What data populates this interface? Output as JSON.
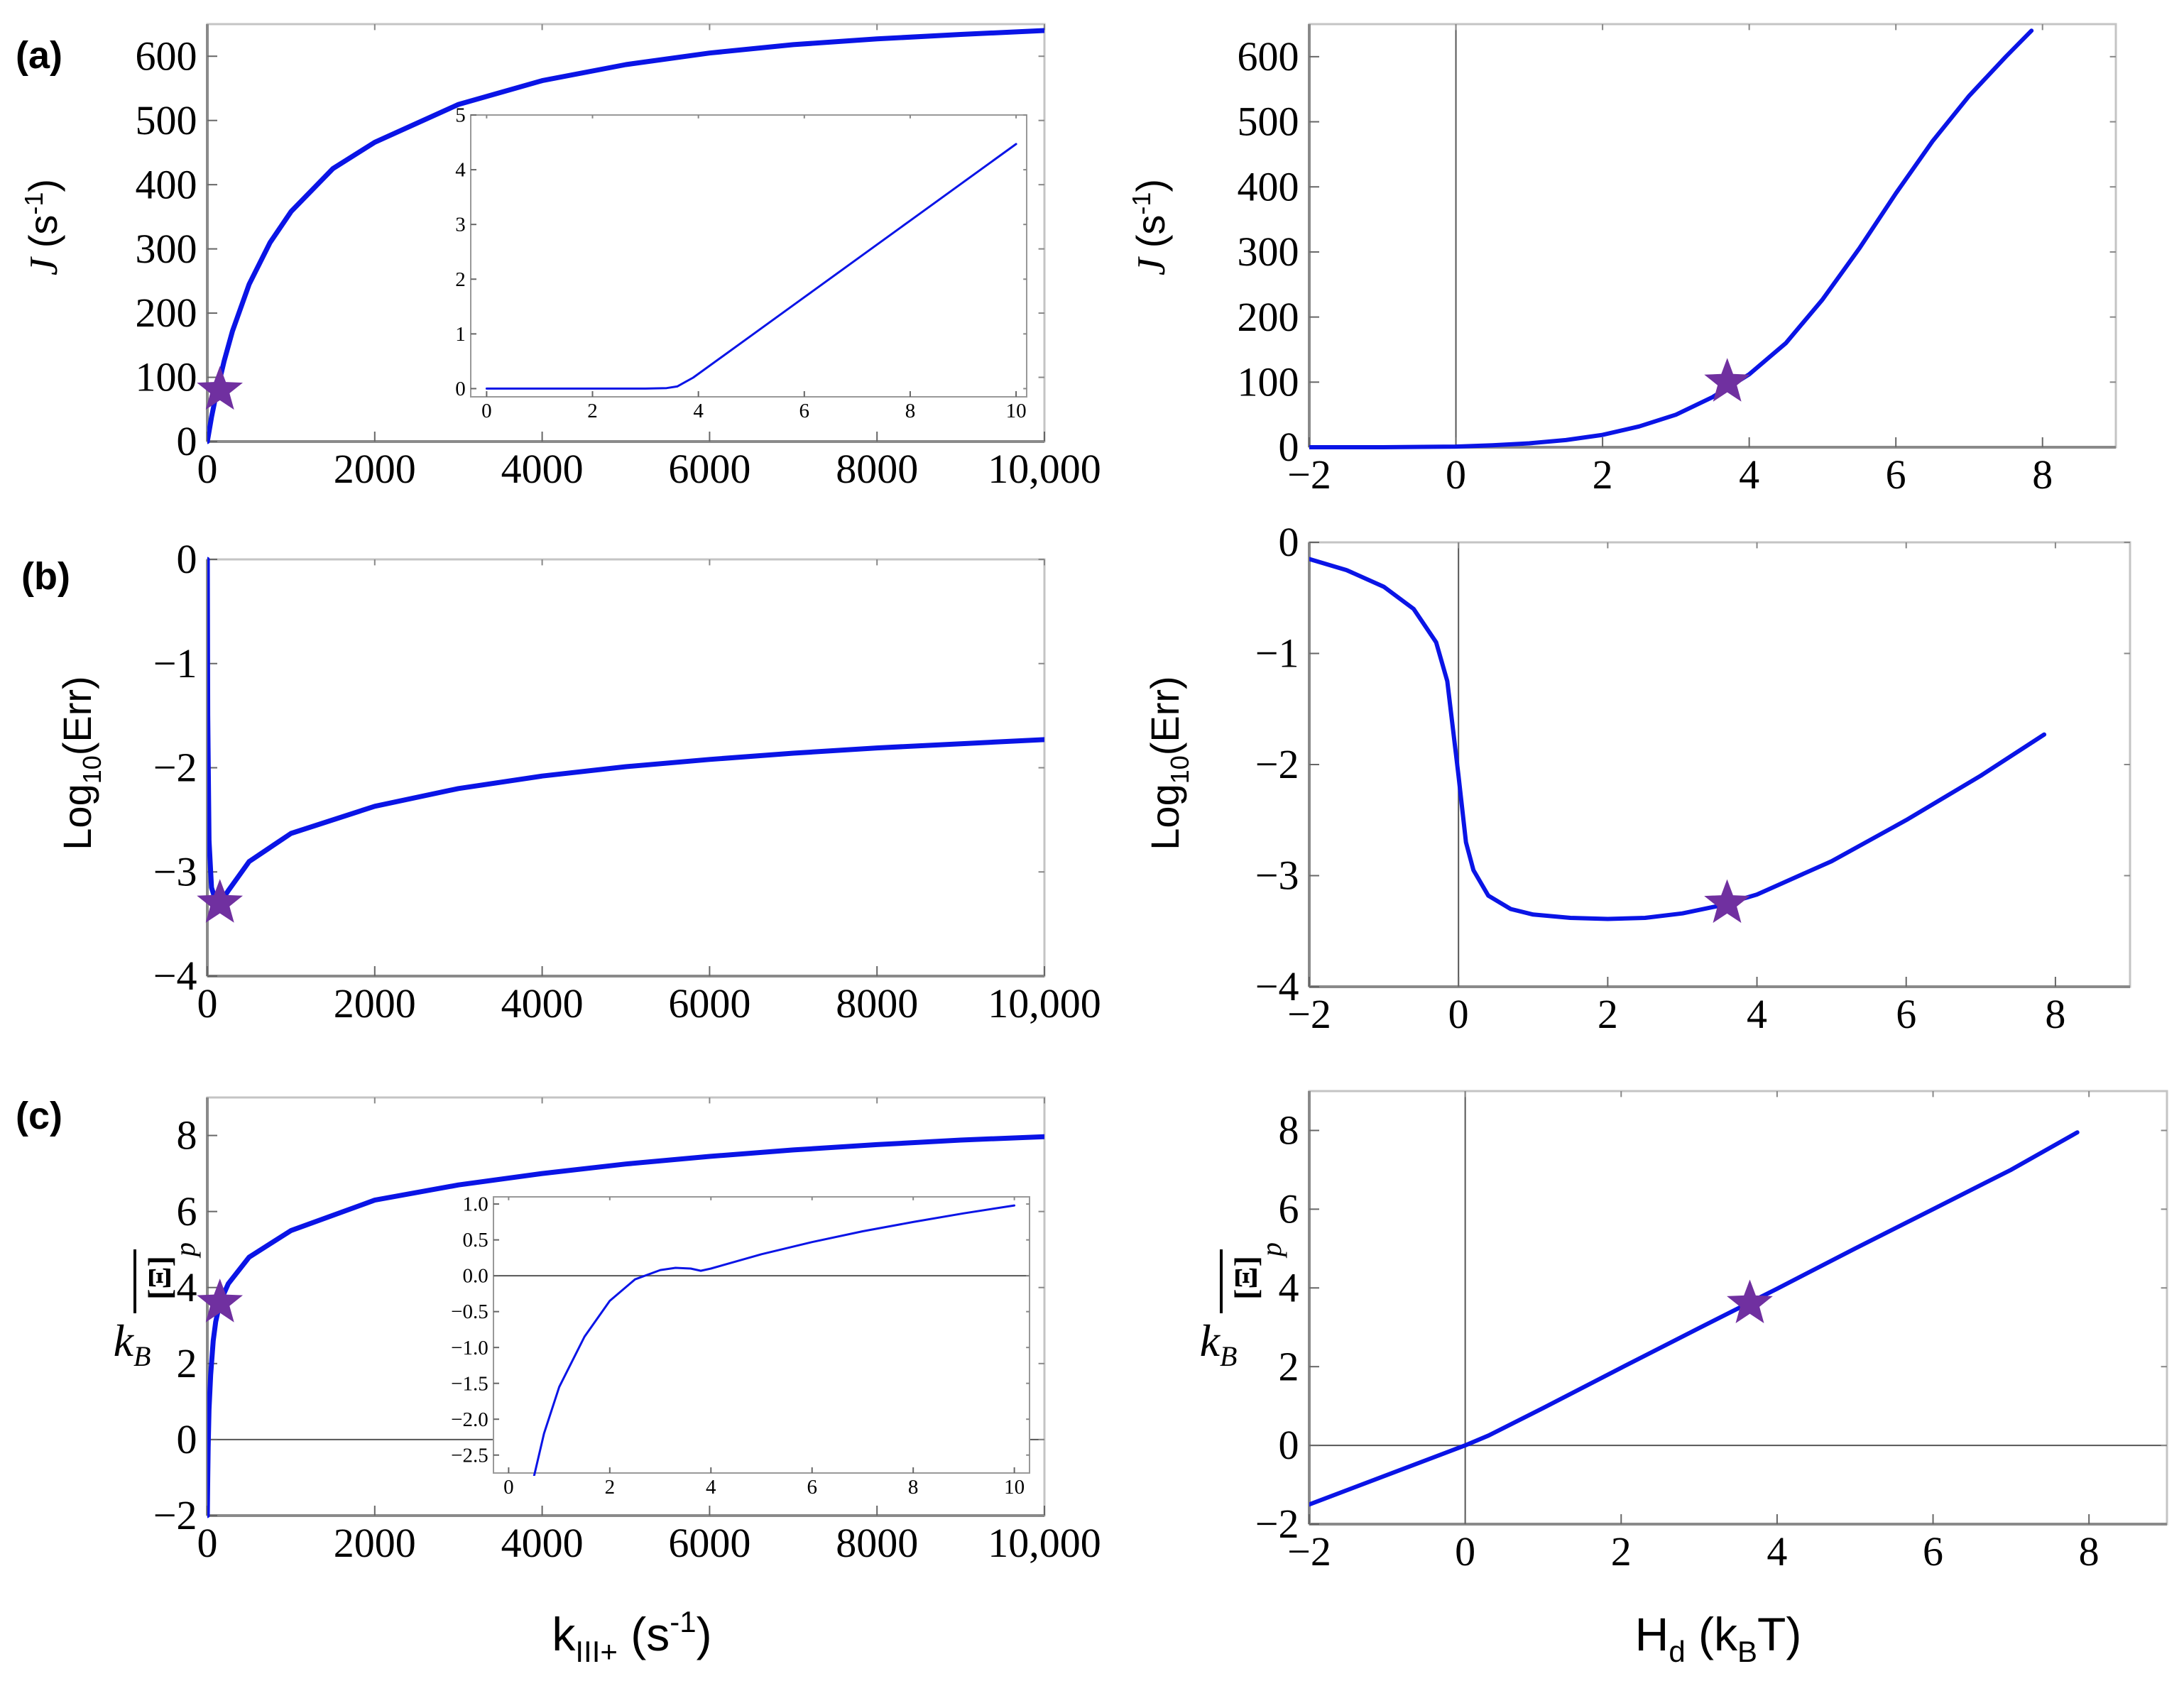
{
  "colors": {
    "curve": "#0a14e6",
    "star": "#7030a0",
    "frame": "#8a8a8a",
    "axis": "#555555",
    "text": "#000000"
  },
  "labels": {
    "panel_a": "(a)",
    "panel_b": "(b)",
    "panel_c": "(c)",
    "ylabel_J_main": "J",
    "ylabel_J_unit": "(s",
    "ylabel_J_exp": "-1",
    "ylabel_J_close": ")",
    "ylabel_err_main": "Log",
    "ylabel_err_sub": "10",
    "ylabel_err_rest": "(Err)",
    "ylabel_xi_num": "[Ξ]",
    "ylabel_xi_sub": "p",
    "ylabel_xi_den": "k",
    "ylabel_xi_densub": "B",
    "xlabel_left_main": "k",
    "xlabel_left_sub": "III+",
    "xlabel_left_unit": " (s",
    "xlabel_left_exp": "-1",
    "xlabel_left_close": ")",
    "xlabel_right_main": "H",
    "xlabel_right_sub": "d",
    "xlabel_right_unit": " (k",
    "xlabel_right_usub": "B",
    "xlabel_right_close": "T)"
  },
  "chart_data": [
    {
      "id": "a-left",
      "panel": "(a)",
      "type": "line",
      "xlabel": "k_III+ (s^-1)",
      "ylabel": "J (s^-1)",
      "xlim": [
        0,
        10000
      ],
      "ylim": [
        0,
        650
      ],
      "xticks": [
        "0",
        "2000",
        "4000",
        "6000",
        "8000",
        "10,000"
      ],
      "yticks": [
        "0",
        "100",
        "200",
        "300",
        "400",
        "500",
        "600"
      ],
      "x": [
        0,
        50,
        100,
        200,
        300,
        500,
        750,
        1000,
        1500,
        2000,
        3000,
        4000,
        5000,
        6000,
        7000,
        8000,
        9000,
        10000
      ],
      "y": [
        0,
        38,
        70,
        125,
        172,
        245,
        310,
        358,
        425,
        466,
        525,
        562,
        587,
        605,
        618,
        627,
        634,
        640
      ],
      "marker": {
        "symbol": "star",
        "x": 150,
        "y": 80
      }
    },
    {
      "id": "a-inset",
      "panel": "(a) inset",
      "type": "line",
      "xlim": [
        -0.3,
        10.2
      ],
      "ylim": [
        -0.15,
        5
      ],
      "xticks": [
        "0",
        "2",
        "4",
        "6",
        "8",
        "10"
      ],
      "yticks": [
        "0",
        "1",
        "2",
        "3",
        "4",
        "5"
      ],
      "x": [
        0,
        1,
        2,
        3,
        3.4,
        3.6,
        3.75,
        3.9,
        5,
        6,
        7,
        8,
        9,
        10
      ],
      "y": [
        0,
        0,
        0,
        0,
        0.01,
        0.04,
        0.12,
        0.2,
        0.97,
        1.67,
        2.37,
        3.07,
        3.77,
        4.47
      ]
    },
    {
      "id": "a-right",
      "panel": "(a)",
      "type": "line",
      "xlabel": "H_d (k_BT)",
      "ylabel": "J (s^-1)",
      "xlim": [
        -2,
        9
      ],
      "ylim": [
        0,
        650
      ],
      "xticks": [
        "−2",
        "0",
        "2",
        "4",
        "6",
        "8"
      ],
      "yticks": [
        "0",
        "100",
        "200",
        "300",
        "400",
        "500",
        "600"
      ],
      "x": [
        -2,
        -1,
        0,
        0.5,
        1,
        1.5,
        2,
        2.5,
        3,
        3.5,
        4,
        4.5,
        5,
        5.5,
        6,
        6.5,
        7,
        7.5,
        7.85
      ],
      "y": [
        0,
        0,
        1,
        3,
        6,
        11,
        19,
        32,
        50,
        77,
        112,
        160,
        227,
        305,
        390,
        470,
        540,
        600,
        640
      ],
      "marker": {
        "symbol": "star",
        "x": 3.7,
        "y": 100
      }
    },
    {
      "id": "b-left",
      "panel": "(b)",
      "type": "line",
      "xlabel": "k_III+ (s^-1)",
      "ylabel": "Log10(Err)",
      "xlim": [
        0,
        10000
      ],
      "ylim": [
        -4,
        0
      ],
      "xticks": [
        "0",
        "2000",
        "4000",
        "6000",
        "8000",
        "10,000"
      ],
      "yticks": [
        "−4",
        "−3",
        "−2",
        "−1",
        "0"
      ],
      "x": [
        0,
        5,
        20,
        50,
        100,
        150,
        250,
        500,
        1000,
        2000,
        3000,
        4000,
        5000,
        6000,
        7000,
        8000,
        9000,
        10000
      ],
      "y": [
        0,
        -1.5,
        -2.7,
        -3.15,
        -3.28,
        -3.3,
        -3.18,
        -2.9,
        -2.63,
        -2.37,
        -2.2,
        -2.08,
        -1.99,
        -1.92,
        -1.86,
        -1.81,
        -1.77,
        -1.73
      ],
      "marker": {
        "symbol": "star",
        "x": 150,
        "y": -3.3
      }
    },
    {
      "id": "b-right",
      "panel": "(b)",
      "type": "line",
      "xlabel": "H_d (k_BT)",
      "ylabel": "Log10(Err)",
      "xlim": [
        -2,
        9
      ],
      "ylim": [
        -4,
        0
      ],
      "xticks": [
        "−2",
        "0",
        "2",
        "4",
        "6",
        "8"
      ],
      "yticks": [
        "−4",
        "−3",
        "−2",
        "−1",
        "0"
      ],
      "x": [
        -2,
        -1.5,
        -1,
        -0.6,
        -0.3,
        -0.15,
        0,
        0.1,
        0.2,
        0.4,
        0.7,
        1,
        1.5,
        2,
        2.5,
        3,
        3.5,
        4,
        5,
        6,
        7,
        7.85
      ],
      "y": [
        -0.15,
        -0.25,
        -0.4,
        -0.6,
        -0.9,
        -1.25,
        -2.1,
        -2.7,
        -2.95,
        -3.18,
        -3.3,
        -3.35,
        -3.38,
        -3.39,
        -3.38,
        -3.34,
        -3.27,
        -3.17,
        -2.87,
        -2.5,
        -2.1,
        -1.73
      ],
      "marker": {
        "symbol": "star",
        "x": 3.6,
        "y": -3.25
      }
    },
    {
      "id": "c-left",
      "panel": "(c)",
      "type": "line",
      "xlabel": "k_III+ (s^-1)",
      "ylabel": "[Ξ]_p / k_B",
      "xlim": [
        0,
        10000
      ],
      "ylim": [
        -2,
        9
      ],
      "xticks": [
        "0",
        "2000",
        "4000",
        "6000",
        "8000",
        "10,000"
      ],
      "yticks": [
        "−2",
        "0",
        "2",
        "4",
        "6",
        "8"
      ],
      "x": [
        0,
        5,
        10,
        20,
        40,
        70,
        100,
        150,
        250,
        500,
        1000,
        2000,
        3000,
        4000,
        5000,
        6000,
        7000,
        8000,
        9000,
        10000
      ],
      "y": [
        -2,
        -1,
        -0.2,
        0.8,
        1.7,
        2.6,
        3.1,
        3.6,
        4.1,
        4.8,
        5.5,
        6.3,
        6.7,
        7.0,
        7.25,
        7.45,
        7.62,
        7.76,
        7.88,
        7.97
      ],
      "marker": {
        "symbol": "star",
        "x": 150,
        "y": 3.6
      }
    },
    {
      "id": "c-inset",
      "panel": "(c) inset",
      "type": "line",
      "xlim": [
        -0.3,
        10.3
      ],
      "ylim": [
        -2.75,
        1.1
      ],
      "xticks": [
        "0",
        "2",
        "4",
        "6",
        "8",
        "10"
      ],
      "yticks": [
        "−2.5",
        "−2.0",
        "−1.5",
        "−1.0",
        "−0.5",
        "0.0",
        "0.5",
        "1.0"
      ],
      "x": [
        0.5,
        0.7,
        1,
        1.5,
        2,
        2.5,
        3,
        3.3,
        3.6,
        3.8,
        4,
        5,
        6,
        7,
        8,
        9,
        10
      ],
      "y": [
        -2.8,
        -2.2,
        -1.55,
        -0.85,
        -0.35,
        -0.05,
        0.08,
        0.11,
        0.1,
        0.07,
        0.1,
        0.3,
        0.47,
        0.62,
        0.75,
        0.87,
        0.98
      ]
    },
    {
      "id": "c-right",
      "panel": "(c)",
      "type": "line",
      "xlabel": "H_d (k_BT)",
      "ylabel": "[Ξ]_p / k_B",
      "xlim": [
        -2,
        9
      ],
      "ylim": [
        -2,
        9
      ],
      "xticks": [
        "−2",
        "0",
        "2",
        "4",
        "6",
        "8"
      ],
      "yticks": [
        "−2",
        "0",
        "2",
        "4",
        "6",
        "8"
      ],
      "x": [
        -2,
        -1,
        0,
        0.3,
        1,
        2,
        3,
        4,
        5,
        6,
        7,
        7.85
      ],
      "y": [
        -1.5,
        -0.75,
        0,
        0.25,
        0.95,
        1.97,
        2.98,
        3.98,
        5.0,
        6.0,
        7.0,
        7.95
      ],
      "marker": {
        "symbol": "star",
        "x": 3.65,
        "y": 3.6
      }
    }
  ]
}
